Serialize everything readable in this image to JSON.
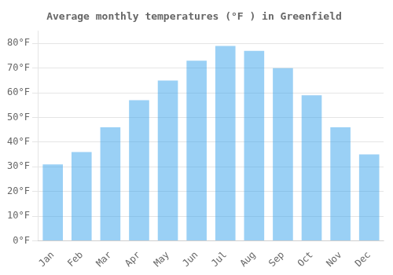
{
  "chart_data": {
    "type": "bar",
    "title": "Average monthly temperatures (°F ) in Greenfield",
    "categories": [
      "Jan",
      "Feb",
      "Mar",
      "Apr",
      "May",
      "Jun",
      "Jul",
      "Aug",
      "Sep",
      "Oct",
      "Nov",
      "Dec"
    ],
    "values": [
      31,
      36,
      46,
      57,
      65,
      73,
      79,
      77,
      70,
      59,
      46,
      35
    ],
    "ylim": [
      0,
      85
    ],
    "yticks": [
      {
        "value": 0,
        "label": "0°F"
      },
      {
        "value": 10,
        "label": "10°F"
      },
      {
        "value": 20,
        "label": "20°F"
      },
      {
        "value": 30,
        "label": "30°F"
      },
      {
        "value": 40,
        "label": "40°F"
      },
      {
        "value": 50,
        "label": "50°F"
      },
      {
        "value": 60,
        "label": "60°F"
      },
      {
        "value": 70,
        "label": "70°F"
      },
      {
        "value": 80,
        "label": "80°F"
      }
    ],
    "grid": true
  }
}
